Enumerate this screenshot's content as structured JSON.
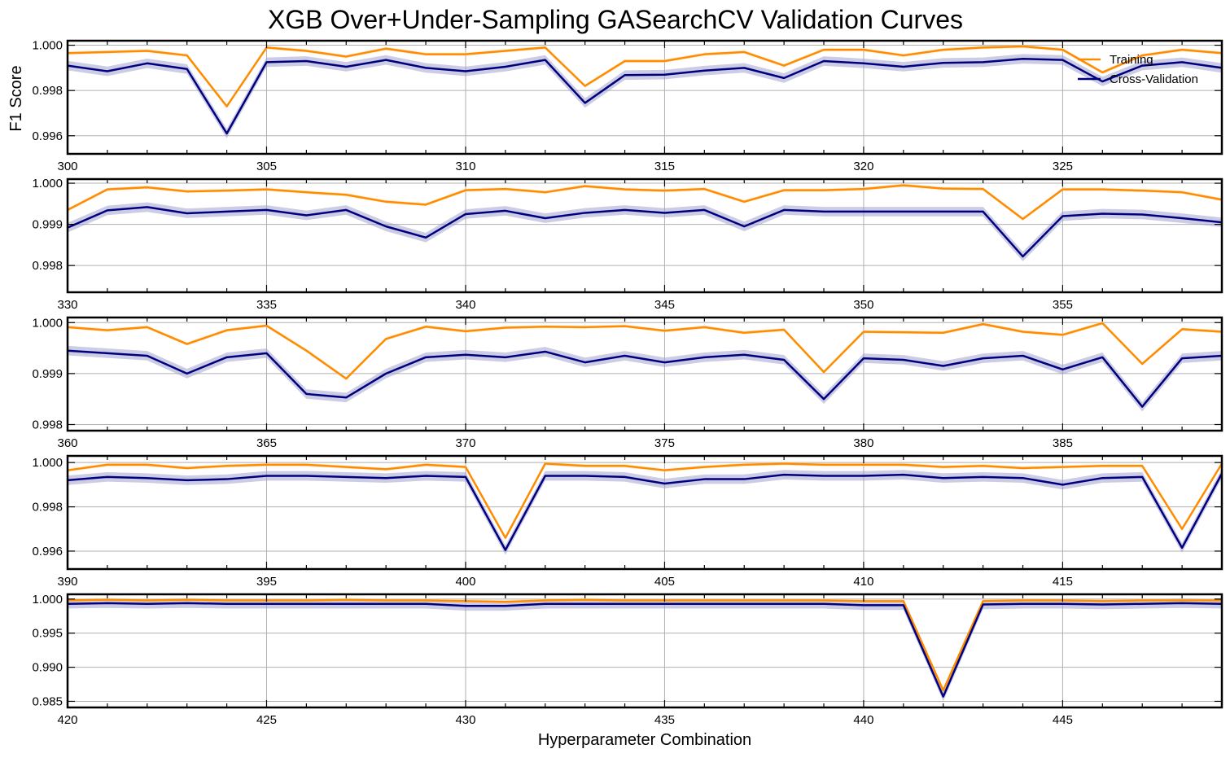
{
  "figure": {
    "title": "XGB Over+Under-Sampling GASearchCV Validation Curves",
    "xlabel": "Hyperparameter Combination",
    "ylabel": "F1 Score"
  },
  "legend": {
    "placement": "top-right",
    "training_label": "Training",
    "cv_label": "Cross-Validation"
  },
  "colors": {
    "training": "#ff8c00",
    "training_band": "#ffd9a8",
    "cv": "#00007f",
    "cv_band": "#9999cc",
    "grid": "#b0b0b0"
  },
  "chart_data": [
    {
      "type": "line",
      "x_start": 300,
      "xlim": [
        300,
        329
      ],
      "ylim": [
        0.9952,
        1.0002
      ],
      "yticks": [
        "1.000",
        "0.998",
        "0.996"
      ],
      "ytick_values": [
        1.0,
        0.998,
        0.996
      ],
      "xticks": [
        300,
        305,
        310,
        315,
        320,
        325
      ],
      "series": [
        {
          "name": "Training",
          "values": [
            0.99965,
            0.9997,
            0.99975,
            0.99955,
            0.9973,
            0.9999,
            0.99975,
            0.9995,
            0.99985,
            0.9996,
            0.9996,
            0.99975,
            0.9999,
            0.9982,
            0.9993,
            0.9993,
            0.9996,
            0.9997,
            0.9991,
            0.9998,
            0.9998,
            0.99955,
            0.9998,
            0.9999,
            0.99995,
            0.9998,
            0.9988,
            0.99955,
            0.9998,
            0.99965
          ]
        },
        {
          "name": "Cross-Validation",
          "values": [
            0.9991,
            0.99885,
            0.9992,
            0.99895,
            0.9961,
            0.99925,
            0.9993,
            0.99905,
            0.99935,
            0.999,
            0.99885,
            0.99905,
            0.99935,
            0.99745,
            0.99868,
            0.9987,
            0.99888,
            0.999,
            0.99855,
            0.9993,
            0.9992,
            0.99905,
            0.99922,
            0.99925,
            0.9994,
            0.99935,
            0.9984,
            0.9991,
            0.99925,
            0.999
          ]
        }
      ]
    },
    {
      "type": "line",
      "x_start": 330,
      "xlim": [
        330,
        359
      ],
      "ylim": [
        0.99735,
        1.0001
      ],
      "yticks": [
        "1.000",
        "0.999",
        "0.998"
      ],
      "ytick_values": [
        1.0,
        0.999,
        0.998
      ],
      "xticks": [
        330,
        335,
        340,
        345,
        350,
        355
      ],
      "series": [
        {
          "name": "Training",
          "values": [
            0.99935,
            0.99985,
            0.9999,
            0.9998,
            0.99982,
            0.99985,
            0.99978,
            0.99972,
            0.99955,
            0.99948,
            0.99983,
            0.99986,
            0.99978,
            0.99993,
            0.99985,
            0.99982,
            0.99986,
            0.99955,
            0.99983,
            0.99983,
            0.99986,
            0.99995,
            0.99987,
            0.99986,
            0.99913,
            0.99985,
            0.99985,
            0.99982,
            0.99978,
            0.9996
          ]
        },
        {
          "name": "Cross-Validation",
          "values": [
            0.99892,
            0.99934,
            0.99942,
            0.99927,
            0.99931,
            0.99935,
            0.99922,
            0.99935,
            0.99895,
            0.99868,
            0.99925,
            0.99933,
            0.99915,
            0.99928,
            0.99935,
            0.99928,
            0.99935,
            0.99895,
            0.99935,
            0.99931,
            0.99931,
            0.99931,
            0.99931,
            0.99931,
            0.99822,
            0.9992,
            0.99926,
            0.99924,
            0.99915,
            0.99905
          ]
        }
      ]
    },
    {
      "type": "line",
      "x_start": 360,
      "xlim": [
        360,
        389
      ],
      "ylim": [
        0.99788,
        1.0001
      ],
      "yticks": [
        "1.000",
        "0.999",
        "0.998"
      ],
      "ytick_values": [
        1.0,
        0.999,
        0.998
      ],
      "xticks": [
        360,
        365,
        370,
        375,
        380,
        385
      ],
      "series": [
        {
          "name": "Training",
          "values": [
            0.99991,
            0.99985,
            0.99991,
            0.99958,
            0.99985,
            0.99994,
            0.99945,
            0.9989,
            0.99968,
            0.99992,
            0.99983,
            0.9999,
            0.99992,
            0.99991,
            0.99993,
            0.99984,
            0.99991,
            0.9998,
            0.99986,
            0.99903,
            0.99982,
            0.99981,
            0.9998,
            0.99997,
            0.99982,
            0.99976,
            0.99999,
            0.99919,
            0.99987,
            0.99982
          ]
        },
        {
          "name": "Cross-Validation",
          "values": [
            0.99945,
            0.9994,
            0.99935,
            0.999,
            0.99932,
            0.9994,
            0.9986,
            0.99853,
            0.999,
            0.99932,
            0.99937,
            0.99932,
            0.99943,
            0.99922,
            0.99935,
            0.99922,
            0.99932,
            0.99937,
            0.99927,
            0.9985,
            0.9993,
            0.99927,
            0.99915,
            0.9993,
            0.99935,
            0.99908,
            0.99932,
            0.99835,
            0.9993,
            0.99935
          ]
        }
      ]
    },
    {
      "type": "line",
      "x_start": 390,
      "xlim": [
        390,
        419
      ],
      "ylim": [
        0.99519,
        1.0003
      ],
      "yticks": [
        "1.000",
        "0.998",
        "0.996"
      ],
      "ytick_values": [
        1.0,
        0.998,
        0.996
      ],
      "xticks": [
        390,
        395,
        400,
        405,
        410,
        415
      ],
      "series": [
        {
          "name": "Training",
          "values": [
            0.99965,
            0.9999,
            0.9999,
            0.99975,
            0.99985,
            0.9999,
            0.9999,
            0.9998,
            0.9997,
            0.9999,
            0.9998,
            0.9966,
            0.99995,
            0.99985,
            0.99985,
            0.99965,
            0.9998,
            0.9999,
            0.99995,
            0.9999,
            0.9999,
            0.9999,
            0.9998,
            0.99985,
            0.99975,
            0.9998,
            0.99985,
            0.99985,
            0.997,
            0.99995
          ]
        },
        {
          "name": "Cross-Validation",
          "values": [
            0.9992,
            0.99935,
            0.9993,
            0.9992,
            0.99925,
            0.9994,
            0.9994,
            0.99935,
            0.9993,
            0.9994,
            0.99935,
            0.99605,
            0.9994,
            0.9994,
            0.99935,
            0.99905,
            0.99925,
            0.99925,
            0.99945,
            0.9994,
            0.9994,
            0.99945,
            0.9993,
            0.99935,
            0.9993,
            0.999,
            0.9993,
            0.99935,
            0.99615,
            0.9995
          ]
        }
      ]
    },
    {
      "type": "line",
      "x_start": 420,
      "xlim": [
        420,
        449
      ],
      "ylim": [
        0.9841,
        1.0007
      ],
      "yticks": [
        "1.000",
        "0.995",
        "0.990",
        "0.985"
      ],
      "ytick_values": [
        1.0,
        0.995,
        0.99,
        0.985
      ],
      "xticks": [
        420,
        425,
        430,
        435,
        440,
        445
      ],
      "series": [
        {
          "name": "Training",
          "values": [
            0.9998,
            0.9999,
            0.9998,
            0.9999,
            0.9998,
            0.9998,
            0.9998,
            0.9999,
            0.9998,
            0.9998,
            0.9997,
            0.9996,
            0.9998,
            0.9999,
            0.9998,
            0.9998,
            0.9998,
            0.9998,
            0.9998,
            0.9998,
            0.9997,
            0.9997,
            0.9866,
            0.9997,
            0.9998,
            0.9998,
            0.9997,
            0.9998,
            0.9998,
            0.9998
          ]
        },
        {
          "name": "Cross-Validation",
          "values": [
            0.9993,
            0.9994,
            0.9993,
            0.9994,
            0.9993,
            0.9993,
            0.9993,
            0.9993,
            0.9993,
            0.9993,
            0.999,
            0.999,
            0.9993,
            0.9993,
            0.9993,
            0.9993,
            0.9993,
            0.9993,
            0.9993,
            0.9993,
            0.9991,
            0.9991,
            0.9857,
            0.9992,
            0.9993,
            0.9993,
            0.9992,
            0.9993,
            0.9994,
            0.9993
          ]
        }
      ]
    }
  ]
}
